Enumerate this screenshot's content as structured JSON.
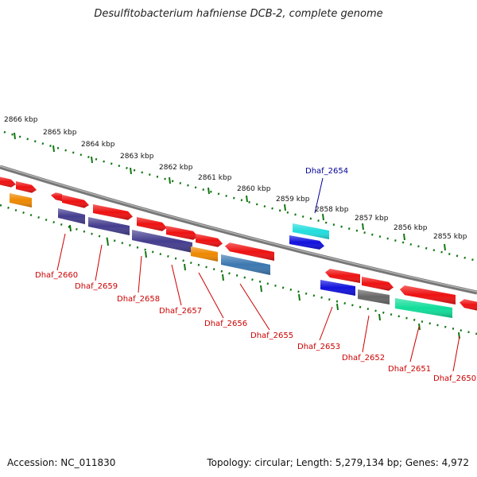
{
  "title": "Desulfitobacterium hafniense DCB-2, complete genome",
  "footer": {
    "accession": "Accession: NC_011830",
    "topology": "Topology: circular; Length: 5,279,134 bp; Genes: 4,972"
  },
  "colors": {
    "red": "#ee1111",
    "orange": "#ee8800",
    "indigo": "#443d8e",
    "steelblue": "#3c78b0",
    "cyan": "#22dddd",
    "blue": "#1111dd",
    "gray": "#666666",
    "green": "#11dd99",
    "ruler": "#117711",
    "backbone": "#888888",
    "label_red": "#cc0000",
    "label_blue": "#000099"
  },
  "ruler_ticks": [
    "2866 kbp",
    "2865 kbp",
    "2864 kbp",
    "2863 kbp",
    "2862 kbp",
    "2861 kbp",
    "2860 kbp",
    "2859 kbp",
    "2858 kbp",
    "2857 kbp",
    "2856 kbp",
    "2855 kbp"
  ],
  "gene_labels": [
    "Dhaf_2660",
    "Dhaf_2659",
    "Dhaf_2658",
    "Dhaf_2657",
    "Dhaf_2656",
    "Dhaf_2655",
    "Dhaf_2654",
    "Dhaf_2653",
    "Dhaf_2652",
    "Dhaf_2651",
    "Dhaf_2650"
  ]
}
